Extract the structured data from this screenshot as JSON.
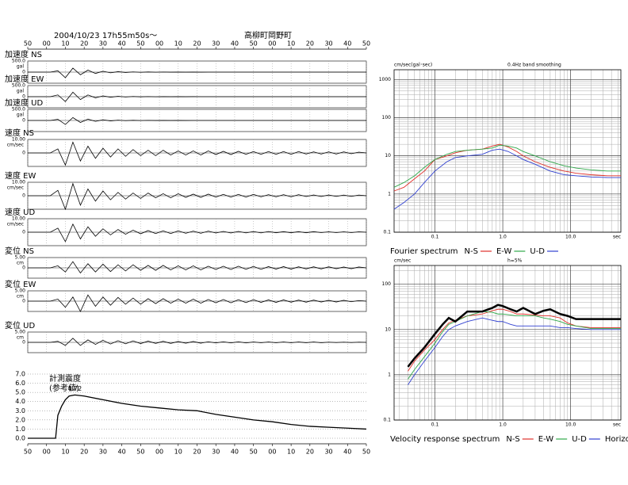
{
  "chart_data": [
    {
      "type": "waveform",
      "title": "2004/10/23 17h55m50s～",
      "subtitle": "高柳町岡野町",
      "xlim": [
        0,
        180
      ],
      "xticks": [
        {
          "value": 0,
          "label": "50"
        },
        {
          "value": 10,
          "label": "00"
        },
        {
          "value": 20,
          "label": "10"
        },
        {
          "value": 30,
          "label": "20"
        },
        {
          "value": 40,
          "label": "30"
        },
        {
          "value": 50,
          "label": "40"
        },
        {
          "value": 60,
          "label": "50"
        },
        {
          "value": 70,
          "label": "00"
        },
        {
          "value": 80,
          "label": "10"
        },
        {
          "value": 90,
          "label": "20"
        },
        {
          "value": 100,
          "label": "30"
        },
        {
          "value": 110,
          "label": "40"
        },
        {
          "value": 120,
          "label": "50"
        },
        {
          "value": 130,
          "label": "00"
        },
        {
          "value": 140,
          "label": "10"
        },
        {
          "value": 150,
          "label": "20"
        },
        {
          "value": 160,
          "label": "30"
        },
        {
          "value": 170,
          "label": "40"
        },
        {
          "value": 180,
          "label": "50"
        }
      ],
      "grid": true,
      "color": "#000000",
      "x": [
        0,
        4,
        8,
        12,
        16,
        20,
        24,
        28,
        32,
        36,
        40,
        44,
        48,
        52,
        56,
        60,
        64,
        68,
        72,
        76,
        80,
        84,
        88,
        92,
        96,
        100,
        104,
        108,
        112,
        116,
        120,
        124,
        128,
        132,
        136,
        140,
        144,
        148,
        152,
        156,
        160,
        164,
        168,
        172,
        176,
        180
      ],
      "panels": [
        {
          "name": "加速度 NS",
          "unit": "gal",
          "ylim": [
            -500,
            500
          ],
          "yticks": [
            {
              "value": 500,
              "label": "500.0"
            },
            0
          ],
          "values": [
            0,
            0,
            0,
            0,
            60,
            -250,
            180,
            -120,
            90,
            -60,
            40,
            -30,
            20,
            -15,
            10,
            -8,
            6,
            -5,
            4,
            -3,
            3,
            -2,
            2,
            -2,
            1,
            -1,
            1,
            -1,
            1,
            -1,
            1,
            -1,
            1,
            -1,
            1,
            -1,
            1,
            -1,
            1,
            -1,
            1,
            -1,
            1,
            -1,
            1,
            0
          ]
        },
        {
          "name": "加速度 EW",
          "unit": "gal",
          "ylim": [
            -500,
            500
          ],
          "yticks": [
            {
              "value": 500,
              "label": "500.0"
            },
            0
          ],
          "values": [
            0,
            0,
            0,
            0,
            80,
            -220,
            200,
            -130,
            80,
            -50,
            35,
            -25,
            18,
            -12,
            9,
            -7,
            5,
            -4,
            3,
            -3,
            2,
            -2,
            2,
            -1,
            1,
            -1,
            1,
            -1,
            1,
            -1,
            1,
            -1,
            1,
            -1,
            1,
            -1,
            1,
            -1,
            1,
            -1,
            1,
            -1,
            1,
            -1,
            1,
            0
          ]
        },
        {
          "name": "加速度 UD",
          "unit": "gal",
          "ylim": [
            -500,
            500
          ],
          "yticks": [
            {
              "value": 500,
              "label": "500.0"
            },
            0
          ],
          "values": [
            0,
            0,
            0,
            0,
            50,
            -180,
            130,
            -90,
            60,
            -40,
            30,
            -20,
            14,
            -10,
            7,
            -5,
            4,
            -3,
            3,
            -2,
            2,
            -2,
            1,
            -1,
            1,
            -1,
            1,
            -1,
            1,
            -1,
            1,
            -1,
            1,
            -1,
            1,
            -1,
            1,
            -1,
            1,
            -1,
            1,
            -1,
            1,
            -1,
            1,
            0
          ]
        },
        {
          "name": "速度 NS",
          "unit": "cm/sec",
          "ylim": [
            -10,
            10
          ],
          "yticks": [
            {
              "value": 10,
              "label": "10.00"
            },
            0
          ],
          "values": [
            0,
            0,
            0,
            0,
            3,
            -9,
            8,
            -6,
            5,
            -4,
            3.5,
            -3,
            3,
            -2.5,
            2.5,
            -2,
            2,
            -2,
            2,
            -1.5,
            1.5,
            -1.5,
            1.5,
            -1.5,
            1.5,
            -1.2,
            1.2,
            -1.2,
            1.2,
            -1,
            1,
            -1,
            1,
            -1,
            1,
            -1,
            1,
            -0.8,
            0.8,
            -0.8,
            0.8,
            -0.8,
            0.8,
            -0.6,
            0.6,
            0
          ]
        },
        {
          "name": "速度 EW",
          "unit": "cm/sec",
          "ylim": [
            -10,
            10
          ],
          "yticks": [
            {
              "value": 10,
              "label": "10.00"
            },
            0
          ],
          "values": [
            0,
            0,
            0,
            0,
            4,
            -10,
            9,
            -7,
            5,
            -4,
            3.5,
            -3,
            2.5,
            -2.5,
            2,
            -2,
            2,
            -1.5,
            1.5,
            -1.5,
            1.5,
            -1.2,
            1.2,
            -1.2,
            1.2,
            -1,
            1,
            -1,
            1,
            -1,
            1,
            -0.8,
            0.8,
            -0.8,
            0.8,
            -0.8,
            0.8,
            -0.6,
            0.6,
            -0.6,
            0.6,
            -0.5,
            0.5,
            -0.5,
            0.5,
            0
          ]
        },
        {
          "name": "速度 UD",
          "unit": "cm/sec",
          "ylim": [
            -10,
            10
          ],
          "yticks": [
            {
              "value": 10,
              "label": "10.00"
            },
            0
          ],
          "values": [
            0,
            0,
            0,
            0,
            3,
            -7,
            6,
            -5,
            4,
            -3,
            2.5,
            -2,
            2,
            -1.5,
            1.5,
            -1.2,
            1.2,
            -1,
            1,
            -1,
            1,
            -0.8,
            0.8,
            -0.8,
            0.8,
            -0.6,
            0.6,
            -0.6,
            0.6,
            -0.5,
            0.5,
            -0.5,
            0.5,
            -0.4,
            0.4,
            -0.4,
            0.4,
            -0.4,
            0.4,
            -0.3,
            0.3,
            -0.3,
            0.3,
            -0.3,
            0.3,
            0
          ]
        },
        {
          "name": "変位 NS",
          "unit": "cm",
          "ylim": [
            -5,
            5
          ],
          "yticks": [
            {
              "value": 5,
              "label": "5.00"
            },
            0
          ],
          "values": [
            0,
            0,
            0,
            0,
            1,
            -2,
            3,
            -2.5,
            2,
            -2,
            1.8,
            -1.8,
            1.5,
            -1.5,
            1.5,
            -1.2,
            1.2,
            -1.2,
            1.2,
            -1,
            1,
            -1,
            1,
            -1,
            0.8,
            -0.8,
            0.8,
            -0.8,
            0.8,
            -0.7,
            0.7,
            -0.7,
            0.6,
            -0.6,
            0.6,
            -0.6,
            0.5,
            -0.5,
            0.5,
            -0.5,
            0.5,
            -0.4,
            0.4,
            -0.4,
            0.4,
            0
          ]
        },
        {
          "name": "変位 EW",
          "unit": "cm",
          "ylim": [
            -5,
            5
          ],
          "yticks": [
            {
              "value": 5,
              "label": "5.00"
            },
            0
          ],
          "values": [
            0,
            0,
            0,
            0,
            1,
            -3,
            2,
            -5,
            3,
            -2.5,
            2,
            -2,
            1.8,
            -1.5,
            1.5,
            -1.5,
            1.2,
            -1.2,
            1.2,
            -1,
            1,
            -1,
            1,
            -1,
            0.8,
            -0.8,
            0.8,
            -0.8,
            0.7,
            -0.7,
            0.7,
            -0.6,
            0.6,
            -0.6,
            0.6,
            -0.5,
            0.5,
            -0.5,
            0.5,
            -0.4,
            0.4,
            -0.4,
            0.4,
            -0.3,
            0.3,
            0
          ]
        },
        {
          "name": "変位 UD",
          "unit": "cm",
          "ylim": [
            -5,
            5
          ],
          "yticks": [
            {
              "value": 5,
              "label": "5.00"
            },
            0
          ],
          "values": [
            0,
            0,
            0,
            0,
            0.5,
            -1.5,
            2,
            -1.5,
            1.2,
            -1,
            1,
            -0.8,
            0.8,
            -0.7,
            0.7,
            -0.6,
            0.6,
            -0.5,
            0.5,
            -0.5,
            0.4,
            -0.4,
            0.4,
            -0.4,
            0.3,
            -0.3,
            0.3,
            -0.3,
            0.3,
            -0.3,
            0.2,
            -0.2,
            0.2,
            -0.2,
            0.2,
            -0.2,
            0.2,
            -0.2,
            0.2,
            -0.2,
            0.1,
            -0.1,
            0.1,
            -0.1,
            0.1,
            0
          ]
        }
      ]
    },
    {
      "type": "line",
      "title": "計測震度",
      "subtitle": "(参考値)",
      "color": "#000000",
      "grid": true,
      "xlim": [
        0,
        180
      ],
      "xticks": [
        {
          "value": 0,
          "label": "50"
        },
        {
          "value": 10,
          "label": "00"
        },
        {
          "value": 20,
          "label": "10"
        },
        {
          "value": 30,
          "label": "20"
        },
        {
          "value": 40,
          "label": "30"
        },
        {
          "value": 50,
          "label": "40"
        },
        {
          "value": 60,
          "label": "50"
        },
        {
          "value": 70,
          "label": "00"
        },
        {
          "value": 80,
          "label": "10"
        },
        {
          "value": 90,
          "label": "20"
        },
        {
          "value": 100,
          "label": "30"
        },
        {
          "value": 110,
          "label": "40"
        },
        {
          "value": 120,
          "label": "50"
        },
        {
          "value": 130,
          "label": "00"
        },
        {
          "value": 140,
          "label": "10"
        },
        {
          "value": 150,
          "label": "20"
        },
        {
          "value": 160,
          "label": "30"
        },
        {
          "value": 170,
          "label": "40"
        },
        {
          "value": 180,
          "label": "50"
        }
      ],
      "ylim": [
        0,
        7
      ],
      "yticks": [
        {
          "value": 0,
          "label": "0.0"
        },
        {
          "value": 1,
          "label": "1.0"
        },
        {
          "value": 2,
          "label": "2.0"
        },
        {
          "value": 3,
          "label": "3.0"
        },
        {
          "value": 4,
          "label": "4.0"
        },
        {
          "value": 5,
          "label": "5.0"
        },
        {
          "value": 6,
          "label": "6.0"
        },
        {
          "value": 7,
          "label": "7.0"
        }
      ],
      "x": [
        0,
        12,
        14.8,
        16,
        18,
        20,
        22,
        25,
        30,
        40,
        50,
        60,
        70,
        80,
        90,
        100,
        110,
        120,
        130,
        140,
        150,
        160,
        170,
        180
      ],
      "values": [
        0,
        0,
        0,
        2.5,
        3.5,
        4.2,
        4.6,
        4.72,
        4.6,
        4.2,
        3.8,
        3.5,
        3.3,
        3.1,
        3.0,
        2.6,
        2.3,
        2.0,
        1.8,
        1.5,
        1.3,
        1.2,
        1.1,
        1.0
      ],
      "labeled_point": 7
    },
    {
      "type": "loglog",
      "xscale": "log",
      "yscale": "log",
      "grid": true,
      "y_unit": "cm/sec(gal･sec)",
      "note": "0.4Hz band smoothing",
      "legend_title": "Fourier spectrum",
      "x_unit": "sec",
      "xlim": [
        0.025,
        55
      ],
      "ylim": [
        0.1,
        1800
      ],
      "xticks": [
        0.1,
        {
          "value": 1,
          "label": "1.0"
        },
        {
          "value": 10,
          "label": "10.0"
        }
      ],
      "yticks": [
        0.1,
        1,
        10,
        100,
        1000
      ],
      "x": [
        0.025,
        0.035,
        0.05,
        0.07,
        0.1,
        0.15,
        0.2,
        0.3,
        0.5,
        0.7,
        0.9,
        1.2,
        1.6,
        2,
        3,
        5,
        8,
        12,
        20,
        35,
        55
      ],
      "series": [
        {
          "name": "N-S",
          "color": "#e0302a",
          "values": [
            1.2,
            1.5,
            2.5,
            4,
            8,
            10,
            12,
            14,
            15,
            18,
            20,
            17,
            13,
            10,
            7,
            5,
            4,
            3.5,
            3.2,
            3,
            3
          ]
        },
        {
          "name": "E-W",
          "color": "#2fa84a",
          "values": [
            1.5,
            2,
            3,
            5,
            8,
            11,
            13,
            14,
            15,
            16,
            19,
            18,
            16,
            13,
            10,
            7,
            5.5,
            4.8,
            4.3,
            4,
            4
          ]
        },
        {
          "name": "U-D",
          "color": "#3040d0",
          "values": [
            0.4,
            0.6,
            1,
            2,
            4,
            7,
            9,
            10,
            11,
            14,
            15,
            13,
            10,
            8,
            6,
            4,
            3.2,
            3,
            2.8,
            2.7,
            2.7
          ]
        }
      ]
    },
    {
      "type": "loglog",
      "xscale": "log",
      "yscale": "log",
      "grid": true,
      "y_unit": "cm/sec",
      "note": "h=5%",
      "legend_title": "Velocity response spectrum",
      "x_unit": "sec",
      "xlim": [
        0.025,
        55
      ],
      "ylim": [
        0.1,
        260
      ],
      "xticks": [
        0.1,
        {
          "value": 1,
          "label": "1.0"
        },
        {
          "value": 10,
          "label": "10.0"
        }
      ],
      "yticks": [
        0.1,
        1,
        10,
        100
      ],
      "x": [
        0.04,
        0.05,
        0.07,
        0.1,
        0.13,
        0.16,
        0.2,
        0.3,
        0.5,
        0.7,
        0.85,
        1,
        1.3,
        1.6,
        2,
        3,
        4,
        5,
        7,
        9,
        12,
        20,
        55
      ],
      "series": [
        {
          "name": "N-S",
          "color": "#e0302a",
          "values": [
            1.2,
            2,
            3.5,
            6,
            10,
            14,
            16,
            20,
            22,
            26,
            28,
            28,
            25,
            22,
            22,
            21,
            20,
            20,
            18,
            14,
            12,
            11,
            11
          ]
        },
        {
          "name": "E-W",
          "color": "#2fa84a",
          "values": [
            0.8,
            1.3,
            2.5,
            5,
            9,
            13,
            15,
            20,
            25,
            24,
            22,
            22,
            21,
            20,
            20,
            20,
            18,
            17,
            15,
            13,
            12,
            10.5,
            10.5
          ]
        },
        {
          "name": "U-D",
          "color": "#3040d0",
          "values": [
            0.6,
            1,
            2,
            4,
            7,
            10,
            12,
            15,
            18,
            16,
            15,
            15,
            13,
            12,
            12,
            12,
            12,
            12,
            11,
            11,
            10.5,
            10,
            10
          ]
        },
        {
          "name": "Horizon",
          "color": "#000000",
          "line_width": 2.5,
          "values": [
            1.5,
            2.3,
            4,
            8,
            13,
            18,
            15,
            25,
            25,
            30,
            35,
            33,
            28,
            25,
            30,
            22,
            26,
            28,
            22,
            20,
            17,
            17,
            17
          ]
        }
      ]
    }
  ]
}
